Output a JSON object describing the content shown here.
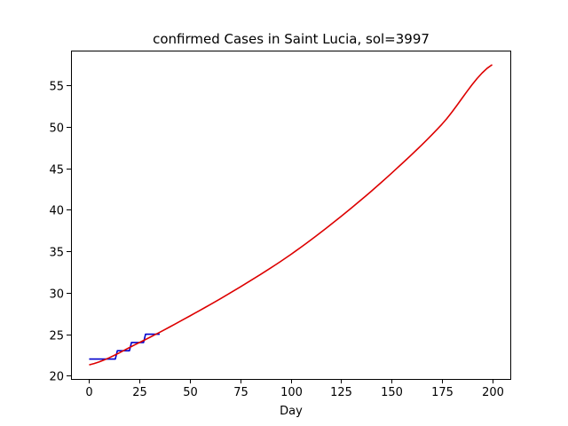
{
  "chart_data": {
    "type": "line",
    "title": "confirmed Cases in Saint Lucia, sol=3997",
    "xlabel": "Day",
    "ylabel": "",
    "xlim": [
      -9,
      209
    ],
    "ylim": [
      19.6,
      59.2
    ],
    "xticks": [
      0,
      25,
      50,
      75,
      100,
      125,
      150,
      175,
      200
    ],
    "yticks": [
      20,
      25,
      30,
      35,
      40,
      45,
      50,
      55
    ],
    "grid": false,
    "series": [
      {
        "color": "#0000cc",
        "step": true,
        "x": [
          0,
          13,
          14,
          20,
          21,
          27,
          28,
          35
        ],
        "y": [
          22,
          22,
          23,
          23,
          24,
          24,
          25,
          25
        ]
      },
      {
        "color": "#dd0000",
        "step": false,
        "x": [
          0,
          25,
          50,
          75,
          100,
          125,
          150,
          175,
          200
        ],
        "y": [
          21.3,
          24.0,
          27.2,
          30.7,
          34.6,
          39.2,
          44.4,
          50.3,
          57.5
        ]
      }
    ]
  }
}
